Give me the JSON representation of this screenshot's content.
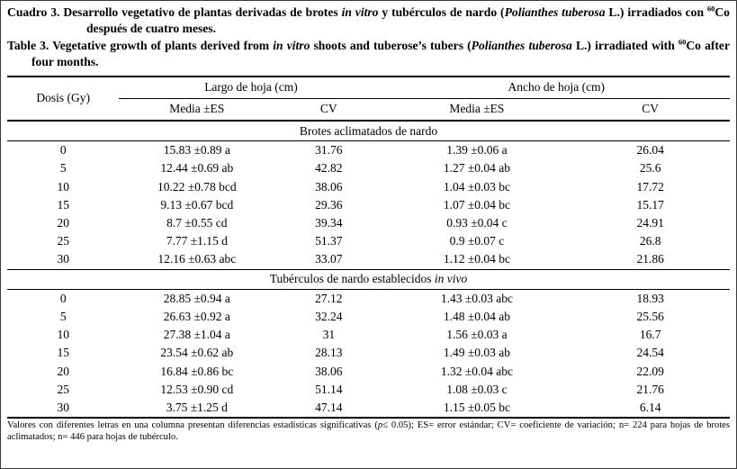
{
  "colors": {
    "background": "#ffffff",
    "text": "#000000",
    "rules": "#000000"
  },
  "titles": {
    "spanish": [
      {
        "t": "Cuadro 3. Desarrollo vegetativo de plantas derivadas de brotes "
      },
      {
        "t": "in vitro",
        "i": true
      },
      {
        "t": " y tubérculos de nardo ("
      },
      {
        "t": "Polianthes tuberosa",
        "i": true
      },
      {
        "t": " L.) irradiados con "
      },
      {
        "t": "60",
        "sup": true
      },
      {
        "t": "Co después de cuatro meses."
      }
    ],
    "english": [
      {
        "t": "Table 3. Vegetative growth of plants derived from "
      },
      {
        "t": "in vitro",
        "i": true
      },
      {
        "t": " shoots and tuberose’s tubers ("
      },
      {
        "t": "Polianthes tuberosa",
        "i": true
      },
      {
        "t": " L.) irradiated with "
      },
      {
        "t": "60",
        "sup": true
      },
      {
        "t": "Co after four months."
      }
    ]
  },
  "table": {
    "col_dosis": "Dosis (Gy)",
    "group_headers": [
      {
        "label": "Largo de hoja (cm)"
      },
      {
        "label": "Ancho de hoja (cm)"
      }
    ],
    "sub_headers": [
      "Media ±ES",
      "CV",
      "Media ±ES",
      "CV"
    ],
    "sections": [
      {
        "title": [
          {
            "t": "Brotes aclimatados de nardo"
          }
        ],
        "rows": [
          [
            "0",
            "15.83 ±0.89 a",
            "31.76",
            "1.39 ±0.06 a",
            "26.04"
          ],
          [
            "5",
            "12.44 ±0.69 ab",
            "42.82",
            "1.27 ±0.04 ab",
            "25.6"
          ],
          [
            "10",
            "10.22 ±0.78 bcd",
            "38.06",
            "1.04 ±0.03 bc",
            "17.72"
          ],
          [
            "15",
            "9.13 ±0.67 bcd",
            "29.36",
            "1.07 ±0.04 bc",
            "15.17"
          ],
          [
            "20",
            "8.7 ±0.55 cd",
            "39.34",
            "0.93 ±0.04 c",
            "24.91"
          ],
          [
            "25",
            "7.77 ±1.15 d",
            "51.37",
            "0.9 ±0.07 c",
            "26.8"
          ],
          [
            "30",
            "12.16 ±0.63 abc",
            "33.07",
            "1.12 ±0.04 bc",
            "21.86"
          ]
        ]
      },
      {
        "title": [
          {
            "t": "Tubérculos de nardo establecidos "
          },
          {
            "t": "in vivo",
            "i": true
          }
        ],
        "rows": [
          [
            "0",
            "28.85 ±0.94 a",
            "27.12",
            "1.43 ±0.03 abc",
            "18.93"
          ],
          [
            "5",
            "26.63 ±0.92 a",
            "32.24",
            "1.48 ±0.04 ab",
            "25.56"
          ],
          [
            "10",
            "27.38 ±1.04 a",
            "31",
            "1.56 ±0.03 a",
            "16.7"
          ],
          [
            "15",
            "23.54 ±0.62 ab",
            "28.13",
            "1.49 ±0.03 ab",
            "24.54"
          ],
          [
            "20",
            "16.84 ±0.86 bc",
            "38.06",
            "1.32 ±0.04 abc",
            "22.09"
          ],
          [
            "25",
            "12.53 ±0.90 cd",
            "51.14",
            "1.08 ±0.03 c",
            "21.76"
          ],
          [
            "30",
            "3.75 ±1.25 d",
            "47.14",
            "1.15 ±0.05 bc",
            "6.14"
          ]
        ]
      }
    ]
  },
  "footnote": [
    {
      "t": "Valores con diferentes letras en una columna presentan diferencias estadísticas significativas ("
    },
    {
      "t": "p",
      "i": true
    },
    {
      "t": "≤ 0.05); ES= error estándar; CV= coeficiente de variación; n= 224 para hojas de brotes aclimatados; n= 446 para hojas de tubérculo."
    }
  ]
}
